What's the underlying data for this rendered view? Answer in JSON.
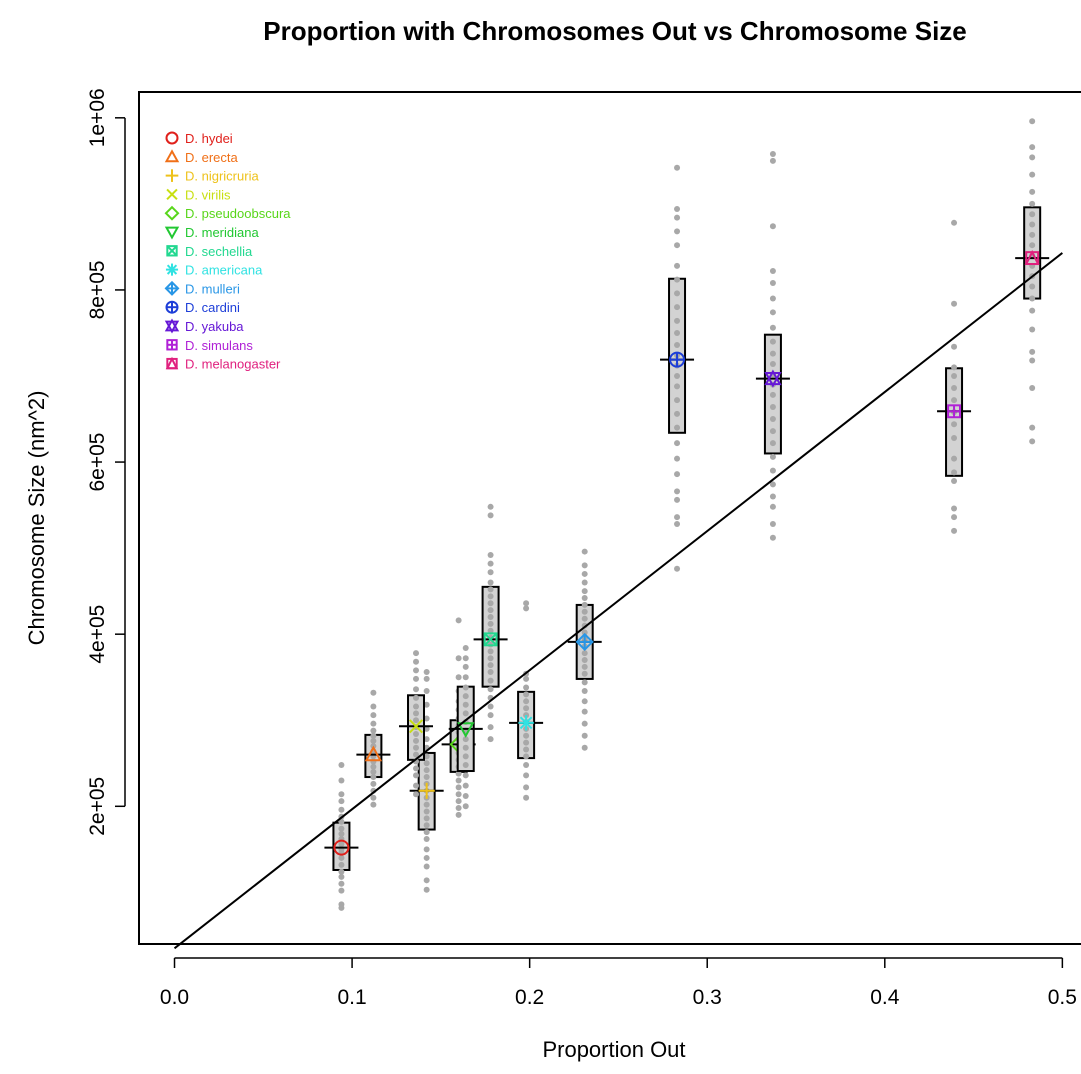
{
  "chart_data": {
    "type": "scatter",
    "title": "Proportion with Chromosomes Out vs Chromosome Size",
    "xlabel": "Proportion Out",
    "ylabel": "Chromosome Size (nm^2)",
    "xlim": [
      -0.02,
      0.515
    ],
    "ylim": [
      40000,
      1030000
    ],
    "xticks": [
      0.0,
      0.1,
      0.2,
      0.3,
      0.4,
      0.5
    ],
    "xtick_labels": [
      "0.0",
      "0.1",
      "0.2",
      "0.3",
      "0.4",
      "0.5"
    ],
    "yticks": [
      200000,
      400000,
      600000,
      800000,
      1000000
    ],
    "ytick_labels": [
      "2e+05",
      "4e+05",
      "6e+05",
      "8e+05",
      "1e+06"
    ],
    "grid": false,
    "legend_position": "top-left",
    "regression_line": {
      "x": [
        0.0,
        0.5
      ],
      "y": [
        35000,
        843000
      ]
    },
    "series": [
      {
        "name": "D. hydei",
        "color": "#e0201b",
        "symbol": "circle",
        "x": 0.094,
        "mean": 152000,
        "box": [
          126000,
          181000
        ],
        "points": [
          82000,
          86000,
          102000,
          110000,
          118000,
          124000,
          132000,
          140000,
          146000,
          150000,
          156000,
          162000,
          168000,
          174000,
          182000,
          188000,
          196000,
          206000,
          214000,
          230000,
          248000
        ]
      },
      {
        "name": "D. erecta",
        "color": "#f07018",
        "symbol": "triangle-up",
        "x": 0.112,
        "mean": 260000,
        "box": [
          234000,
          283000
        ],
        "points": [
          202000,
          210000,
          218000,
          226000,
          234000,
          240000,
          246000,
          252000,
          258000,
          264000,
          270000,
          276000,
          282000,
          288000,
          296000,
          306000,
          316000,
          332000
        ]
      },
      {
        "name": "D. nigricruria",
        "color": "#eec21a",
        "symbol": "plus",
        "x": 0.142,
        "mean": 218000,
        "box": [
          173000,
          262000
        ],
        "points": [
          103000,
          114000,
          130000,
          140000,
          150000,
          162000,
          170000,
          178000,
          186000,
          194000,
          202000,
          210000,
          218000,
          226000,
          234000,
          242000,
          250000,
          258000,
          268000,
          278000,
          290000,
          302000,
          318000,
          334000,
          348000,
          356000
        ]
      },
      {
        "name": "D. virilis",
        "color": "#c8df10",
        "symbol": "cross",
        "x": 0.136,
        "mean": 293000,
        "box": [
          254000,
          329000
        ],
        "points": [
          214000,
          224000,
          236000,
          244000,
          252000,
          260000,
          268000,
          276000,
          284000,
          292000,
          300000,
          308000,
          316000,
          326000,
          336000,
          348000,
          358000,
          368000,
          378000
        ]
      },
      {
        "name": "D. pseudoobscura",
        "color": "#58d61a",
        "symbol": "diamond",
        "x": 0.16,
        "mean": 272000,
        "box": [
          240000,
          300000
        ],
        "points": [
          190000,
          198000,
          206000,
          214000,
          222000,
          230000,
          238000,
          246000,
          254000,
          262000,
          270000,
          278000,
          286000,
          294000,
          302000,
          312000,
          322000,
          334000,
          350000,
          372000,
          416000
        ]
      },
      {
        "name": "D. meridiana",
        "color": "#22c832",
        "symbol": "triangle-down",
        "x": 0.164,
        "mean": 290000,
        "box": [
          241000,
          339000
        ],
        "points": [
          200000,
          212000,
          224000,
          236000,
          248000,
          258000,
          268000,
          278000,
          288000,
          298000,
          308000,
          318000,
          328000,
          338000,
          350000,
          362000,
          372000,
          384000
        ]
      },
      {
        "name": "D. sechellia",
        "color": "#22d890",
        "symbol": "square-x",
        "x": 0.178,
        "mean": 394000,
        "box": [
          339000,
          455000
        ],
        "points": [
          278000,
          292000,
          306000,
          316000,
          326000,
          336000,
          346000,
          356000,
          364000,
          372000,
          380000,
          388000,
          396000,
          404000,
          412000,
          420000,
          428000,
          436000,
          444000,
          452000,
          460000,
          472000,
          482000,
          492000,
          538000,
          548000
        ]
      },
      {
        "name": "D. americana",
        "color": "#30e2e2",
        "symbol": "asterisk",
        "x": 0.198,
        "mean": 297000,
        "box": [
          256000,
          333000
        ],
        "points": [
          210000,
          222000,
          236000,
          248000,
          258000,
          266000,
          274000,
          282000,
          290000,
          298000,
          306000,
          314000,
          322000,
          330000,
          338000,
          348000,
          354000,
          430000,
          436000
        ]
      },
      {
        "name": "D. mulleri",
        "color": "#2896e6",
        "symbol": "circle-plus-diamond",
        "x": 0.231,
        "mean": 391000,
        "box": [
          348000,
          434000
        ],
        "points": [
          268000,
          282000,
          296000,
          310000,
          322000,
          334000,
          344000,
          354000,
          362000,
          370000,
          378000,
          386000,
          394000,
          402000,
          410000,
          418000,
          426000,
          434000,
          442000,
          450000,
          460000,
          470000,
          480000,
          496000
        ]
      },
      {
        "name": "D. cardini",
        "color": "#1d3ed8",
        "symbol": "circle-plus",
        "x": 0.283,
        "mean": 719000,
        "box": [
          634000,
          813000
        ],
        "points": [
          476000,
          528000,
          536000,
          556000,
          566000,
          586000,
          604000,
          622000,
          640000,
          656000,
          672000,
          688000,
          700000,
          712000,
          724000,
          736000,
          750000,
          764000,
          780000,
          796000,
          812000,
          828000,
          852000,
          868000,
          884000,
          894000,
          942000
        ]
      },
      {
        "name": "D. yakuba",
        "color": "#6618d6",
        "symbol": "star-of-david",
        "x": 0.337,
        "mean": 697000,
        "box": [
          610000,
          748000
        ],
        "points": [
          512000,
          528000,
          548000,
          560000,
          574000,
          590000,
          606000,
          622000,
          636000,
          650000,
          664000,
          678000,
          690000,
          702000,
          714000,
          726000,
          740000,
          756000,
          774000,
          790000,
          808000,
          822000,
          874000,
          950000,
          958000
        ]
      },
      {
        "name": "D. simulans",
        "color": "#b021d6",
        "symbol": "square-plus",
        "x": 0.439,
        "mean": 659000,
        "box": [
          584000,
          709000
        ],
        "points": [
          520000,
          536000,
          546000,
          578000,
          588000,
          604000,
          628000,
          644000,
          658000,
          672000,
          686000,
          700000,
          710000,
          734000,
          784000,
          878000
        ]
      },
      {
        "name": "D. melanogaster",
        "color": "#e0207e",
        "symbol": "square-triangle",
        "x": 0.483,
        "mean": 837000,
        "box": [
          790000,
          896000
        ],
        "points": [
          624000,
          640000,
          686000,
          718000,
          728000,
          754000,
          776000,
          790000,
          804000,
          816000,
          828000,
          840000,
          852000,
          864000,
          876000,
          888000,
          900000,
          914000,
          934000,
          954000,
          966000,
          996000
        ]
      }
    ]
  }
}
